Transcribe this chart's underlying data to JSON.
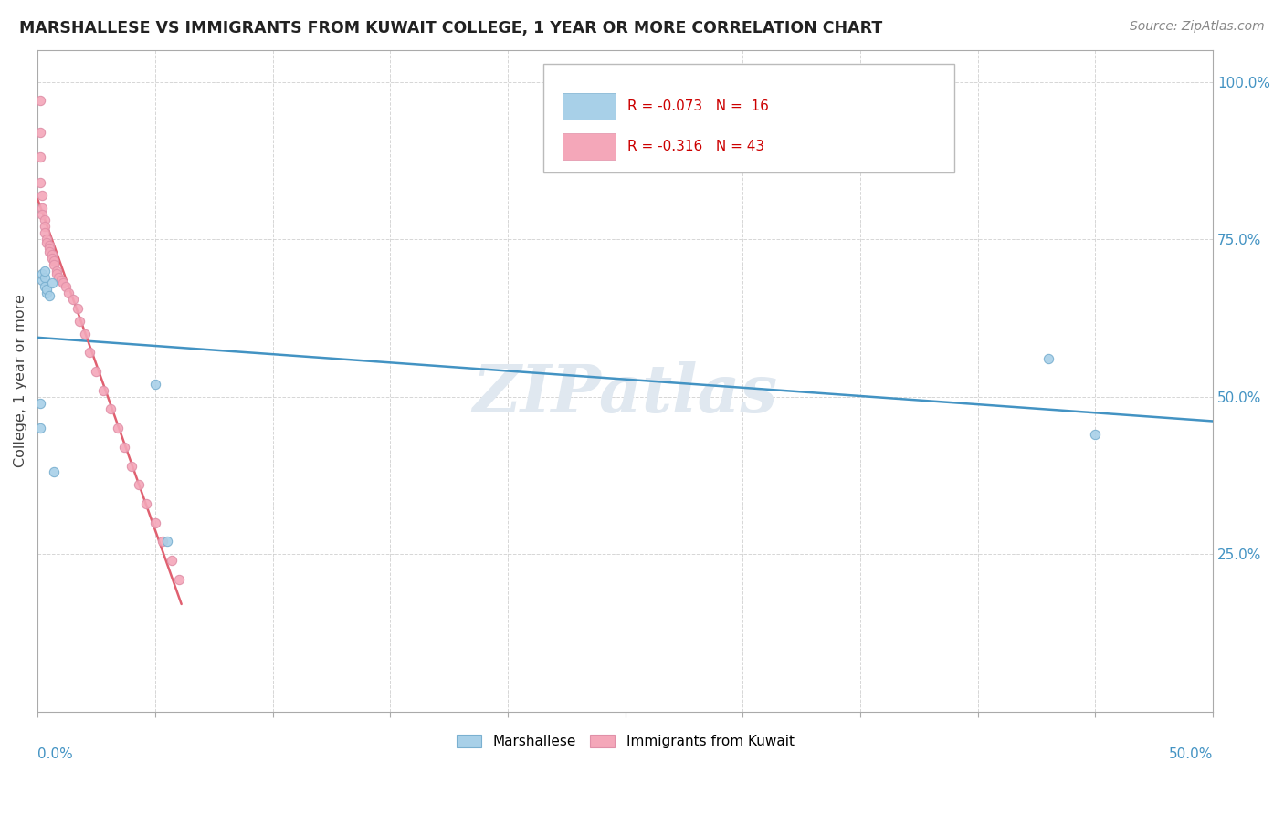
{
  "title": "MARSHALLESE VS IMMIGRANTS FROM KUWAIT COLLEGE, 1 YEAR OR MORE CORRELATION CHART",
  "source": "Source: ZipAtlas.com",
  "ylabel": "College, 1 year or more",
  "xlim": [
    0.0,
    0.5
  ],
  "ylim": [
    0.0,
    1.05
  ],
  "watermark": "ZIPatlas",
  "blue_color": "#a8d0e8",
  "pink_color": "#f4a7b9",
  "blue_line_color": "#4393c3",
  "pink_line_color": "#e06070",
  "blue_dot_edge": "#7ab0d0",
  "pink_dot_edge": "#e090a8",
  "marshallese_x": [
    0.001,
    0.001,
    0.002,
    0.002,
    0.003,
    0.003,
    0.003,
    0.004,
    0.004,
    0.005,
    0.006,
    0.007,
    0.05,
    0.055,
    0.43,
    0.45
  ],
  "marshallese_y": [
    0.49,
    0.45,
    0.685,
    0.695,
    0.69,
    0.7,
    0.675,
    0.665,
    0.67,
    0.66,
    0.68,
    0.38,
    0.52,
    0.27,
    0.56,
    0.44
  ],
  "kuwait_x": [
    0.001,
    0.001,
    0.001,
    0.001,
    0.002,
    0.002,
    0.002,
    0.003,
    0.003,
    0.003,
    0.004,
    0.004,
    0.005,
    0.005,
    0.005,
    0.006,
    0.006,
    0.007,
    0.007,
    0.008,
    0.008,
    0.009,
    0.01,
    0.011,
    0.012,
    0.013,
    0.015,
    0.017,
    0.018,
    0.02,
    0.022,
    0.025,
    0.028,
    0.031,
    0.034,
    0.037,
    0.04,
    0.043,
    0.046,
    0.05,
    0.053,
    0.057,
    0.06
  ],
  "kuwait_y": [
    0.97,
    0.92,
    0.88,
    0.84,
    0.82,
    0.8,
    0.79,
    0.78,
    0.77,
    0.76,
    0.75,
    0.745,
    0.74,
    0.735,
    0.73,
    0.725,
    0.72,
    0.715,
    0.71,
    0.7,
    0.695,
    0.69,
    0.685,
    0.68,
    0.675,
    0.665,
    0.655,
    0.64,
    0.62,
    0.6,
    0.57,
    0.54,
    0.51,
    0.48,
    0.45,
    0.42,
    0.39,
    0.36,
    0.33,
    0.3,
    0.27,
    0.24,
    0.21
  ],
  "blue_reg_slope": -0.073,
  "pink_reg_slope": -0.316
}
